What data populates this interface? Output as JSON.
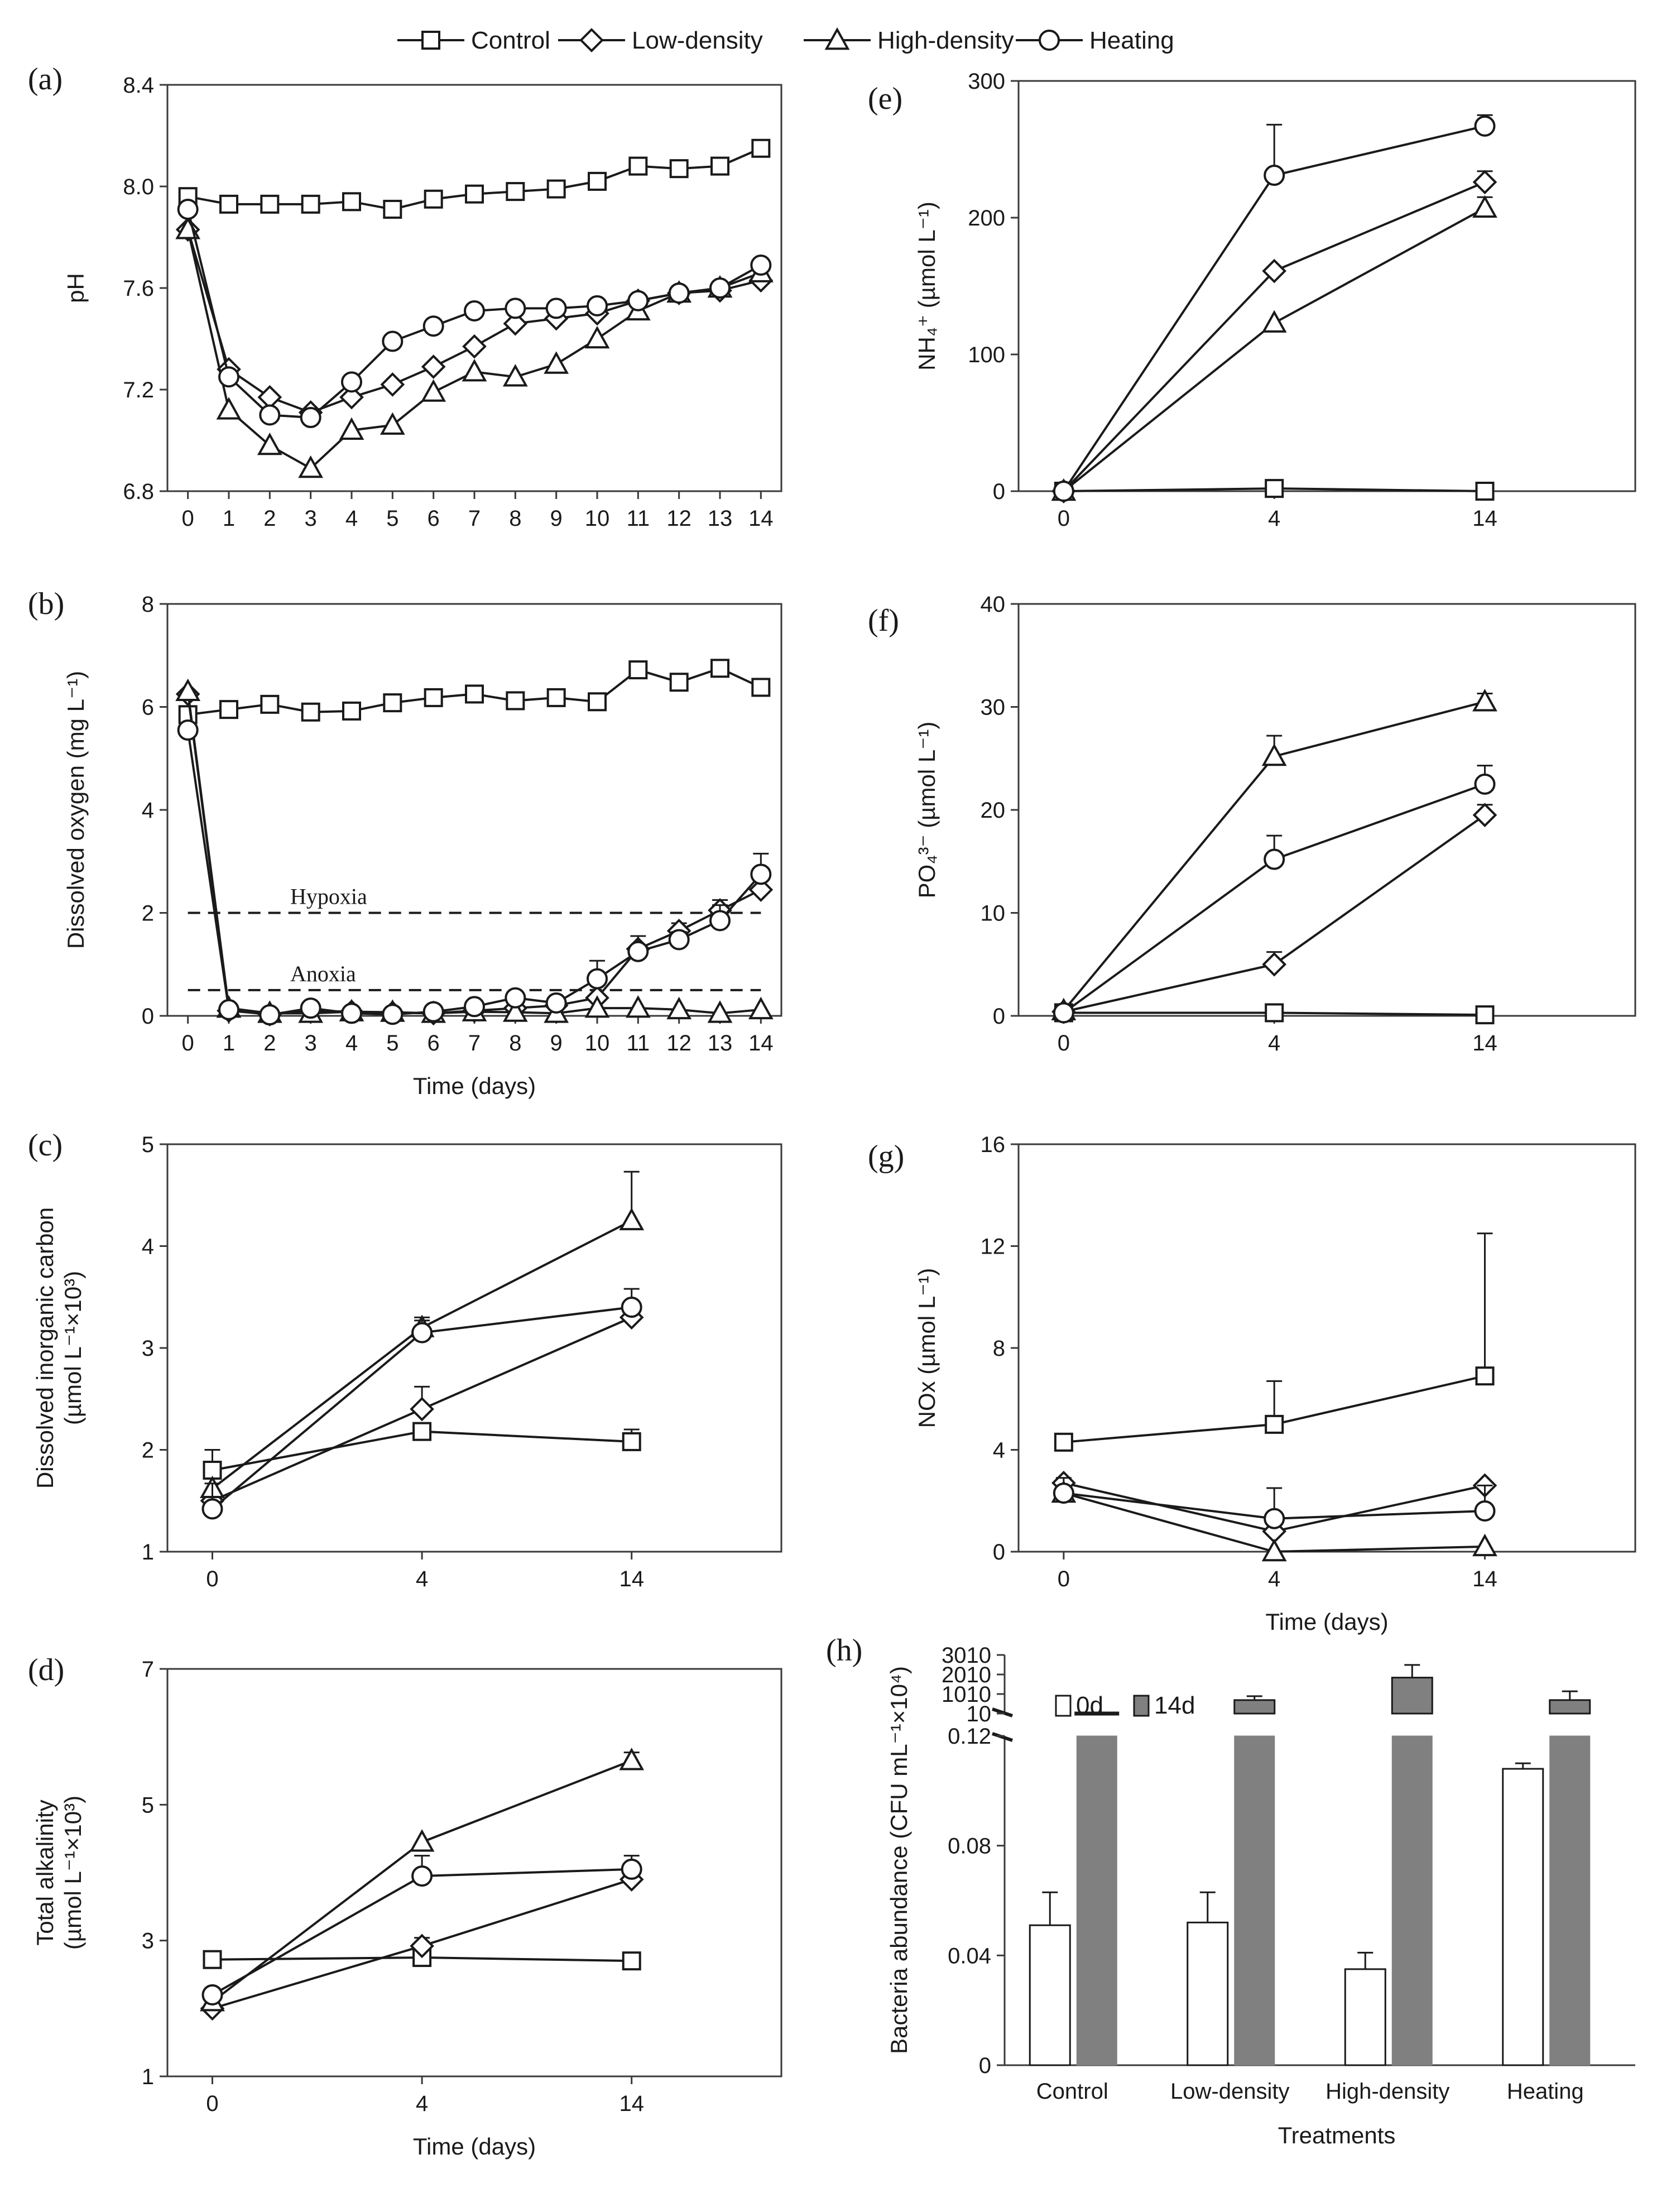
{
  "legend": {
    "items": [
      {
        "name": "Control",
        "marker": "square"
      },
      {
        "name": "Low-density",
        "marker": "diamond"
      },
      {
        "name": "High-density",
        "marker": "triangle"
      },
      {
        "name": "Heating",
        "marker": "circle"
      }
    ]
  },
  "chart_data": [
    {
      "id": "a",
      "panel_label": "(a)",
      "type": "line",
      "xlabel": "",
      "ylabel": "pH",
      "xlim": [
        -0.5,
        14.5
      ],
      "ylim": [
        6.8,
        8.4
      ],
      "xticks": [
        "0",
        "1",
        "2",
        "3",
        "4",
        "5",
        "6",
        "7",
        "8",
        "9",
        "10",
        "11",
        "12",
        "13",
        "14"
      ],
      "yticks": [
        "6.8",
        "7.2",
        "7.6",
        "8.0",
        "8.4"
      ],
      "x": [
        0,
        1,
        2,
        3,
        4,
        5,
        6,
        7,
        8,
        9,
        10,
        11,
        12,
        13,
        14
      ],
      "series": [
        {
          "name": "Control",
          "marker": "square",
          "values": [
            7.96,
            7.93,
            7.93,
            7.93,
            7.94,
            7.91,
            7.95,
            7.97,
            7.98,
            7.99,
            8.02,
            8.08,
            8.07,
            8.08,
            8.15
          ]
        },
        {
          "name": "Low-density",
          "marker": "diamond",
          "values": [
            7.83,
            7.28,
            7.17,
            7.11,
            7.17,
            7.22,
            7.29,
            7.37,
            7.46,
            7.48,
            7.5,
            7.55,
            7.58,
            7.59,
            7.63
          ]
        },
        {
          "name": "High-density",
          "marker": "triangle",
          "values": [
            7.83,
            7.12,
            6.98,
            6.89,
            7.04,
            7.06,
            7.19,
            7.27,
            7.25,
            7.3,
            7.4,
            7.51,
            7.58,
            7.6,
            7.66
          ]
        },
        {
          "name": "Heating",
          "marker": "circle",
          "values": [
            7.91,
            7.25,
            7.1,
            7.09,
            7.23,
            7.39,
            7.45,
            7.51,
            7.52,
            7.52,
            7.53,
            7.55,
            7.58,
            7.6,
            7.69
          ]
        }
      ]
    },
    {
      "id": "b",
      "panel_label": "(b)",
      "type": "line",
      "xlabel": "Time  (days)",
      "ylabel": "Dissolved oxygen (mg L⁻¹)",
      "xlim": [
        -0.5,
        14.5
      ],
      "ylim": [
        0,
        8
      ],
      "xticks": [
        "0",
        "1",
        "2",
        "3",
        "4",
        "5",
        "6",
        "7",
        "8",
        "9",
        "10",
        "11",
        "12",
        "13",
        "14"
      ],
      "yticks": [
        "0",
        "2",
        "4",
        "6",
        "8"
      ],
      "x": [
        0,
        1,
        2,
        3,
        4,
        5,
        6,
        7,
        8,
        9,
        10,
        11,
        12,
        13,
        14
      ],
      "reference_lines": [
        {
          "label": "Hypoxia",
          "value": 2.0
        },
        {
          "label": "Anoxia",
          "value": 0.5
        }
      ],
      "series": [
        {
          "name": "Control",
          "marker": "square",
          "values": [
            5.85,
            5.95,
            6.05,
            5.9,
            5.92,
            6.08,
            6.18,
            6.25,
            6.12,
            6.18,
            6.1,
            6.72,
            6.48,
            6.75,
            6.38
          ],
          "errors": [
            0,
            0,
            0,
            0,
            0,
            0,
            0,
            0,
            0,
            0,
            0,
            0,
            0,
            0,
            0
          ]
        },
        {
          "name": "Low-density",
          "marker": "diamond",
          "values": [
            6.25,
            0.1,
            0.03,
            0.1,
            0.08,
            0.06,
            0.05,
            0.1,
            0.15,
            0.2,
            0.35,
            1.3,
            1.65,
            2.05,
            2.45
          ],
          "errors": [
            0,
            0,
            0,
            0,
            0,
            0,
            0,
            0,
            0,
            0,
            0,
            0,
            0.15,
            0.2,
            0
          ]
        },
        {
          "name": "High-density",
          "marker": "triangle",
          "values": [
            6.3,
            0.15,
            0.05,
            0.05,
            0.08,
            0.07,
            0.05,
            0.08,
            0.07,
            0.05,
            0.15,
            0.15,
            0.12,
            0.05,
            0.12
          ],
          "errors": [
            0,
            0,
            0,
            0,
            0,
            0,
            0,
            0,
            0,
            0,
            0,
            0,
            0,
            0,
            0
          ]
        },
        {
          "name": "Heating",
          "marker": "circle",
          "values": [
            5.55,
            0.12,
            0.02,
            0.15,
            0.05,
            0.03,
            0.08,
            0.18,
            0.35,
            0.25,
            0.72,
            1.25,
            1.48,
            1.85,
            2.75
          ],
          "errors": [
            0,
            0,
            0,
            0,
            0,
            0,
            0,
            0,
            0,
            0,
            0.35,
            0.3,
            0.15,
            0.3,
            0.4
          ]
        }
      ]
    },
    {
      "id": "c",
      "panel_label": "(c)",
      "type": "line",
      "xlabel": "",
      "ylabel": "Dissolved inorganic carbon",
      "ylabel2": "(µmol L⁻¹×10³)",
      "xlim": [
        -1.5,
        19
      ],
      "ylim": [
        1,
        5
      ],
      "xticks_pos": [
        0,
        7,
        14
      ],
      "xticks": [
        "0",
        "4",
        "14"
      ],
      "yticks": [
        "1",
        "2",
        "3",
        "4",
        "5"
      ],
      "x": [
        0,
        7,
        14
      ],
      "series": [
        {
          "name": "Control",
          "marker": "square",
          "values": [
            1.8,
            2.18,
            2.08
          ],
          "errors": [
            0.2,
            0,
            0.12
          ]
        },
        {
          "name": "Low-density",
          "marker": "diamond",
          "values": [
            1.5,
            2.4,
            3.3
          ],
          "errors": [
            0,
            0.22,
            0.08
          ]
        },
        {
          "name": "High-density",
          "marker": "triangle",
          "values": [
            1.62,
            3.2,
            4.25
          ],
          "errors": [
            0,
            0.1,
            0.48
          ]
        },
        {
          "name": "Heating",
          "marker": "circle",
          "values": [
            1.42,
            3.15,
            3.4
          ],
          "errors": [
            0.25,
            0.12,
            0.18
          ]
        }
      ]
    },
    {
      "id": "d",
      "panel_label": "(d)",
      "type": "line",
      "xlabel": "Time  (days)",
      "ylabel": "Total  alkalinity",
      "ylabel2": "(µmol L⁻¹×10³)",
      "xlim": [
        -1.5,
        19
      ],
      "ylim": [
        1,
        7
      ],
      "xticks_pos": [
        0,
        7,
        14
      ],
      "xticks": [
        "0",
        "4",
        "14"
      ],
      "yticks": [
        "1",
        "3",
        "5",
        "7"
      ],
      "x": [
        0,
        7,
        14
      ],
      "series": [
        {
          "name": "Control",
          "marker": "square",
          "values": [
            2.72,
            2.75,
            2.7
          ],
          "errors": [
            0,
            0,
            0.1
          ]
        },
        {
          "name": "Low-density",
          "marker": "diamond",
          "values": [
            2.0,
            2.92,
            3.9
          ],
          "errors": [
            0,
            0.12,
            0.15
          ]
        },
        {
          "name": "High-density",
          "marker": "triangle",
          "values": [
            2.1,
            4.45,
            5.65
          ],
          "errors": [
            0,
            0,
            0.12
          ]
        },
        {
          "name": "Heating",
          "marker": "circle",
          "values": [
            2.2,
            3.95,
            4.05
          ],
          "errors": [
            0.1,
            0.3,
            0.2
          ]
        }
      ]
    },
    {
      "id": "e",
      "panel_label": "(e)",
      "type": "line",
      "xlabel": "",
      "ylabel": "NH₄⁺ (µmol L⁻¹)",
      "xlim": [
        -1.5,
        19
      ],
      "ylim": [
        0,
        300
      ],
      "xticks_pos": [
        0,
        7,
        14
      ],
      "xticks": [
        "0",
        "4",
        "14"
      ],
      "yticks": [
        "0",
        "100",
        "200",
        "300"
      ],
      "x": [
        0,
        7,
        14
      ],
      "series": [
        {
          "name": "Control",
          "marker": "square",
          "values": [
            0,
            2,
            0
          ],
          "errors": [
            0,
            0,
            0
          ]
        },
        {
          "name": "Low-density",
          "marker": "diamond",
          "values": [
            0,
            161,
            226
          ],
          "errors": [
            0,
            0,
            8
          ]
        },
        {
          "name": "High-density",
          "marker": "triangle",
          "values": [
            0,
            123,
            207
          ],
          "errors": [
            0,
            0,
            8
          ]
        },
        {
          "name": "Heating",
          "marker": "circle",
          "values": [
            0,
            231,
            267
          ],
          "errors": [
            0,
            37,
            8
          ]
        }
      ]
    },
    {
      "id": "f",
      "panel_label": "(f)",
      "type": "line",
      "xlabel": "",
      "ylabel": "PO₄³⁻ (µmol L⁻¹)",
      "xlim": [
        -1.5,
        19
      ],
      "ylim": [
        0,
        40
      ],
      "xticks_pos": [
        0,
        7,
        14
      ],
      "xticks": [
        "0",
        "4",
        "14"
      ],
      "yticks": [
        "0",
        "10",
        "20",
        "30",
        "40"
      ],
      "x": [
        0,
        7,
        14
      ],
      "series": [
        {
          "name": "Control",
          "marker": "square",
          "values": [
            0.3,
            0.3,
            0.1
          ],
          "errors": [
            0,
            0,
            0
          ]
        },
        {
          "name": "Low-density",
          "marker": "diamond",
          "values": [
            0.4,
            5.0,
            19.5
          ],
          "errors": [
            0,
            1.2,
            1.0
          ]
        },
        {
          "name": "High-density",
          "marker": "triangle",
          "values": [
            0.5,
            25.2,
            30.5
          ],
          "errors": [
            0,
            2.0,
            0.8
          ]
        },
        {
          "name": "Heating",
          "marker": "circle",
          "values": [
            0.3,
            15.2,
            22.5
          ],
          "errors": [
            0,
            2.3,
            1.8
          ]
        }
      ]
    },
    {
      "id": "g",
      "panel_label": "(g)",
      "type": "line",
      "xlabel": "Time  (days)",
      "ylabel": "NOx  (µmol L⁻¹)",
      "xlim": [
        -1.5,
        19
      ],
      "ylim": [
        0,
        16
      ],
      "xticks_pos": [
        0,
        7,
        14
      ],
      "xticks": [
        "0",
        "4",
        "14"
      ],
      "yticks": [
        "0",
        "4",
        "8",
        "12",
        "16"
      ],
      "x": [
        0,
        7,
        14
      ],
      "series": [
        {
          "name": "Control",
          "marker": "square",
          "values": [
            4.3,
            5.0,
            6.9
          ],
          "errors": [
            0.3,
            1.7,
            5.6
          ]
        },
        {
          "name": "Low-density",
          "marker": "diamond",
          "values": [
            2.7,
            0.8,
            2.6
          ],
          "errors": [
            0,
            0,
            0
          ]
        },
        {
          "name": "High-density",
          "marker": "triangle",
          "values": [
            2.3,
            0.0,
            0.2
          ],
          "errors": [
            0,
            0,
            0
          ]
        },
        {
          "name": "Heating",
          "marker": "circle",
          "values": [
            2.3,
            1.3,
            1.6
          ],
          "errors": [
            0.6,
            1.2,
            1.0
          ]
        }
      ]
    },
    {
      "id": "h",
      "panel_label": "(h)",
      "type": "bar",
      "xlabel": "Treatments",
      "ylabel": "Bacteria abundance (CFU mL⁻¹×10⁴)",
      "categories": [
        "Control",
        "Low-density",
        "High-density",
        "Heating"
      ],
      "axis_break": {
        "lower_range": [
          0,
          0.12
        ],
        "upper_range": [
          10,
          3010
        ]
      },
      "yticks_lower": [
        "0",
        "0.04",
        "0.08",
        "0.12"
      ],
      "yticks_upper": [
        "10",
        "1010",
        "2010",
        "3010"
      ],
      "series": [
        {
          "name": "0d",
          "color": "#ffffff",
          "values": [
            0.051,
            0.052,
            0.035,
            0.108
          ],
          "errors": [
            0.012,
            0.011,
            0.006,
            0.002
          ]
        },
        {
          "name": "14d",
          "color": "#808080",
          "values": [
            10,
            700,
            1850,
            700
          ],
          "errors": [
            0,
            200,
            650,
            450
          ]
        }
      ]
    }
  ]
}
